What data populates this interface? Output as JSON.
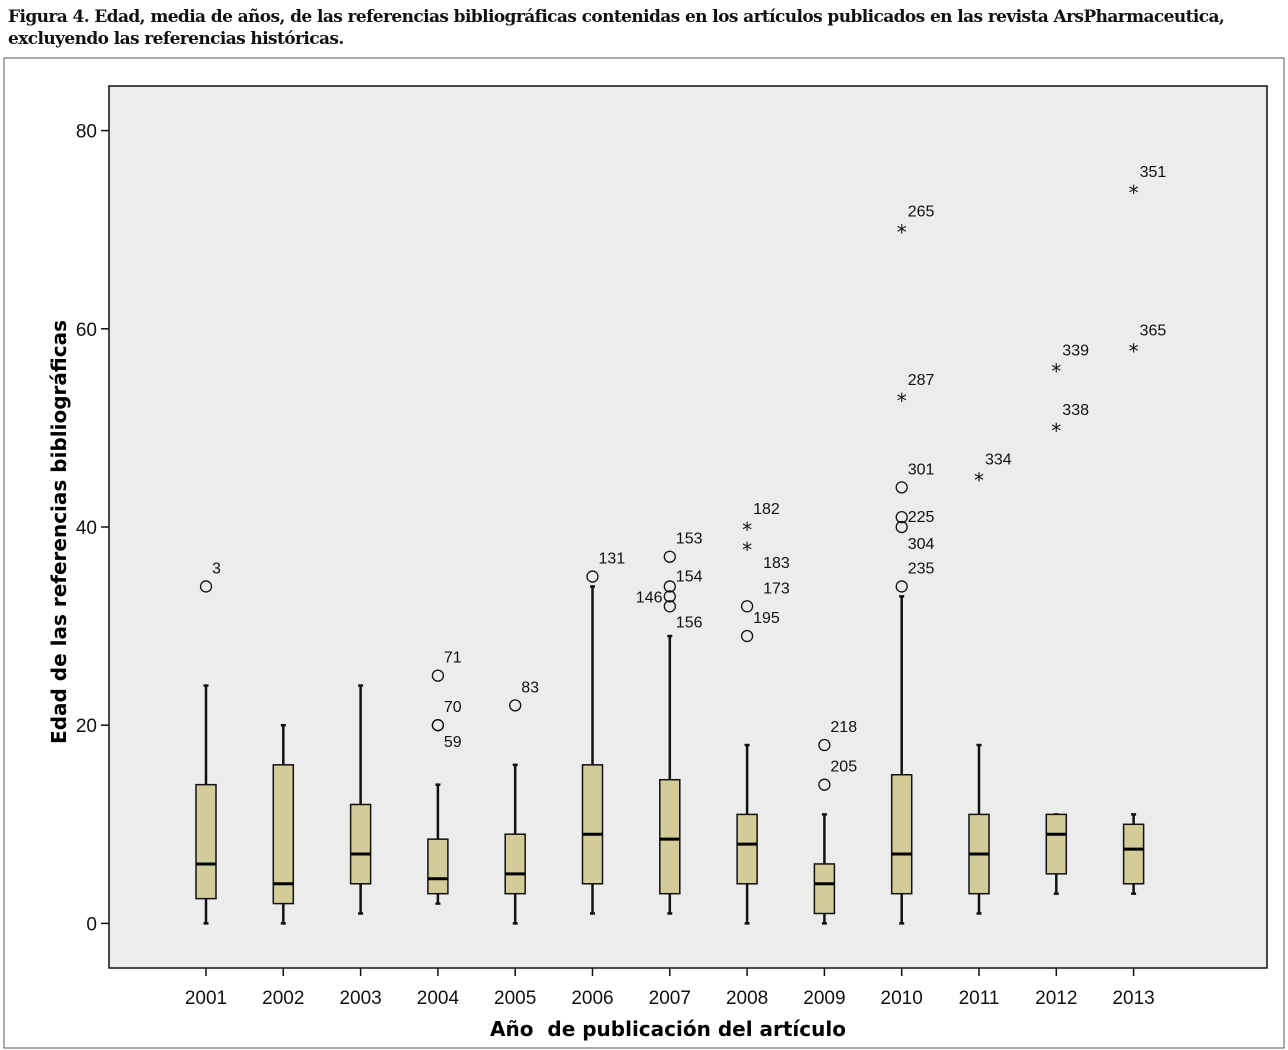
{
  "caption": "Figura 4. Edad, media de años, de las referencias bibliográficas contenidas en los artículos publicados en las revista ArsPharmaceutica, excluyendo las referencias históricas.",
  "chart_data": {
    "type": "boxplot",
    "xlabel": "Año  de publicación del artículo",
    "ylabel": "Edad de las referencias bibliográficas",
    "ylim": [
      -4.5,
      84.5
    ],
    "yticks": [
      0,
      20,
      40,
      60,
      80
    ],
    "grid": false,
    "colors": {
      "box_fill": "#d4cc98",
      "plot_bg": "#ececec",
      "stroke": "#111111"
    },
    "categories": [
      "2001",
      "2002",
      "2003",
      "2004",
      "2005",
      "2006",
      "2007",
      "2008",
      "2009",
      "2010",
      "2011",
      "2012",
      "2013"
    ],
    "boxes": [
      {
        "year": "2001",
        "min": 0,
        "q1": 2.5,
        "median": 6,
        "q3": 14,
        "max": 24
      },
      {
        "year": "2002",
        "min": 0,
        "q1": 2,
        "median": 4,
        "q3": 16,
        "max": 20
      },
      {
        "year": "2003",
        "min": 1,
        "q1": 4,
        "median": 7,
        "q3": 12,
        "max": 24
      },
      {
        "year": "2004",
        "min": 2,
        "q1": 3,
        "median": 4.5,
        "q3": 8.5,
        "max": 14
      },
      {
        "year": "2005",
        "min": 0,
        "q1": 3,
        "median": 5,
        "q3": 9,
        "max": 16
      },
      {
        "year": "2006",
        "min": 1,
        "q1": 4,
        "median": 9,
        "q3": 16,
        "max": 34
      },
      {
        "year": "2007",
        "min": 1,
        "q1": 3,
        "median": 8.5,
        "q3": 14.5,
        "max": 29
      },
      {
        "year": "2008",
        "min": 0,
        "q1": 4,
        "median": 8,
        "q3": 11,
        "max": 18
      },
      {
        "year": "2009",
        "min": 0,
        "q1": 1,
        "median": 4,
        "q3": 6,
        "max": 11
      },
      {
        "year": "2010",
        "min": 0,
        "q1": 3,
        "median": 7,
        "q3": 15,
        "max": 33
      },
      {
        "year": "2011",
        "min": 1,
        "q1": 3,
        "median": 7,
        "q3": 11,
        "max": 18
      },
      {
        "year": "2012",
        "min": 3,
        "q1": 5,
        "median": 9,
        "q3": 11,
        "max": 11
      },
      {
        "year": "2013",
        "min": 3,
        "q1": 4,
        "median": 7.5,
        "q3": 10,
        "max": 11
      }
    ],
    "outliers": [
      {
        "year": "2001",
        "value": 34,
        "label": "3",
        "marker": "circle"
      },
      {
        "year": "2004",
        "value": 25,
        "label": "71",
        "marker": "circle"
      },
      {
        "year": "2004",
        "value": 20,
        "label": "70",
        "marker": "circle"
      },
      {
        "year": "2004",
        "value": 20,
        "label": "59",
        "marker": "circle"
      },
      {
        "year": "2005",
        "value": 22,
        "label": "83",
        "marker": "circle"
      },
      {
        "year": "2006",
        "value": 35,
        "label": "131",
        "marker": "circle"
      },
      {
        "year": "2007",
        "value": 37,
        "label": "153",
        "marker": "circle"
      },
      {
        "year": "2007",
        "value": 34,
        "label": "154",
        "marker": "circle"
      },
      {
        "year": "2007",
        "value": 33,
        "label": "146",
        "marker": "circle"
      },
      {
        "year": "2007",
        "value": 32,
        "label": "156",
        "marker": "circle"
      },
      {
        "year": "2008",
        "value": 40,
        "label": "182",
        "marker": "star"
      },
      {
        "year": "2008",
        "value": 38,
        "label": "183",
        "marker": "star"
      },
      {
        "year": "2008",
        "value": 32,
        "label": "173",
        "marker": "circle"
      },
      {
        "year": "2008",
        "value": 29,
        "label": "195",
        "marker": "circle"
      },
      {
        "year": "2009",
        "value": 18,
        "label": "218",
        "marker": "circle"
      },
      {
        "year": "2009",
        "value": 14,
        "label": "205",
        "marker": "circle"
      },
      {
        "year": "2010",
        "value": 70,
        "label": "265",
        "marker": "star"
      },
      {
        "year": "2010",
        "value": 53,
        "label": "287",
        "marker": "star"
      },
      {
        "year": "2010",
        "value": 44,
        "label": "301",
        "marker": "circle"
      },
      {
        "year": "2010",
        "value": 41,
        "label": "225",
        "marker": "circle"
      },
      {
        "year": "2010",
        "value": 40,
        "label": "304",
        "marker": "circle"
      },
      {
        "year": "2010",
        "value": 34,
        "label": "235",
        "marker": "circle"
      },
      {
        "year": "2011",
        "value": 45,
        "label": "334",
        "marker": "star"
      },
      {
        "year": "2012",
        "value": 56,
        "label": "339",
        "marker": "star"
      },
      {
        "year": "2012",
        "value": 50,
        "label": "338",
        "marker": "star"
      },
      {
        "year": "2013",
        "value": 74,
        "label": "351",
        "marker": "star"
      },
      {
        "year": "2013",
        "value": 58,
        "label": "365",
        "marker": "star"
      }
    ]
  }
}
